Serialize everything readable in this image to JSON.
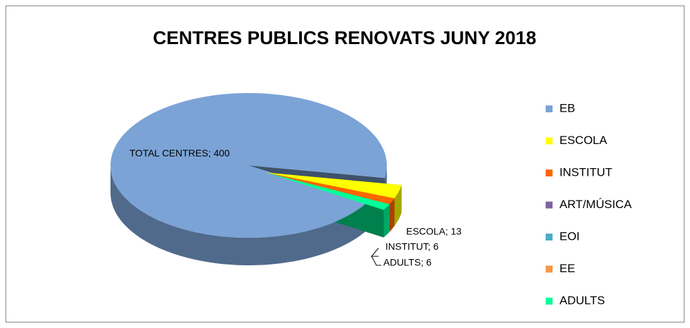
{
  "chart_data": {
    "type": "pie3d",
    "title": "CENTRES PUBLICS RENOVATS JUNY 2018",
    "categories": [
      "EB",
      "ESCOLA",
      "INSTITUT",
      "ART/MÚSICA",
      "EOI",
      "EE",
      "ADULTS"
    ],
    "values": [
      400,
      13,
      6,
      0,
      0,
      0,
      6
    ],
    "value_labels": [
      "TOTAL CENTRES; 400",
      "ESCOLA; 13",
      "INSTITUT; 6",
      null,
      null,
      null,
      "ADULTS; 6"
    ],
    "colors": [
      "#7ba3d6",
      "#ffff00",
      "#ff6600",
      "#8064a2",
      "#4bacc6",
      "#f79646",
      "#00ff99"
    ],
    "legend": "right"
  }
}
